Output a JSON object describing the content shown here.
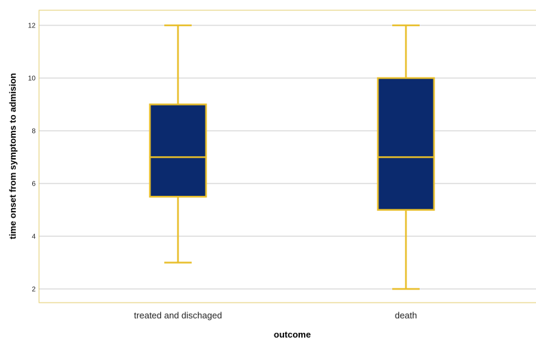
{
  "chart_data": {
    "type": "box",
    "xlabel": "outcome",
    "ylabel": "time onset from symptoms to admision",
    "ylim": [
      1.5,
      12.6
    ],
    "yticks": [
      2,
      4,
      6,
      8,
      10,
      12
    ],
    "grid": true,
    "categories": [
      "treated and dischaged",
      "death"
    ],
    "boxes": [
      {
        "category": "treated and dischaged",
        "min": 3,
        "q1": 5.5,
        "median": 7,
        "q3": 9,
        "max": 12
      },
      {
        "category": "death",
        "min": 2,
        "q1": 5,
        "median": 7,
        "q3": 10,
        "max": 12
      }
    ],
    "colors": {
      "box_fill": "#0b2a6e",
      "box_stroke": "#e8be2a",
      "frame": "#e3cd6c",
      "grid": "#c8c8c8"
    }
  }
}
